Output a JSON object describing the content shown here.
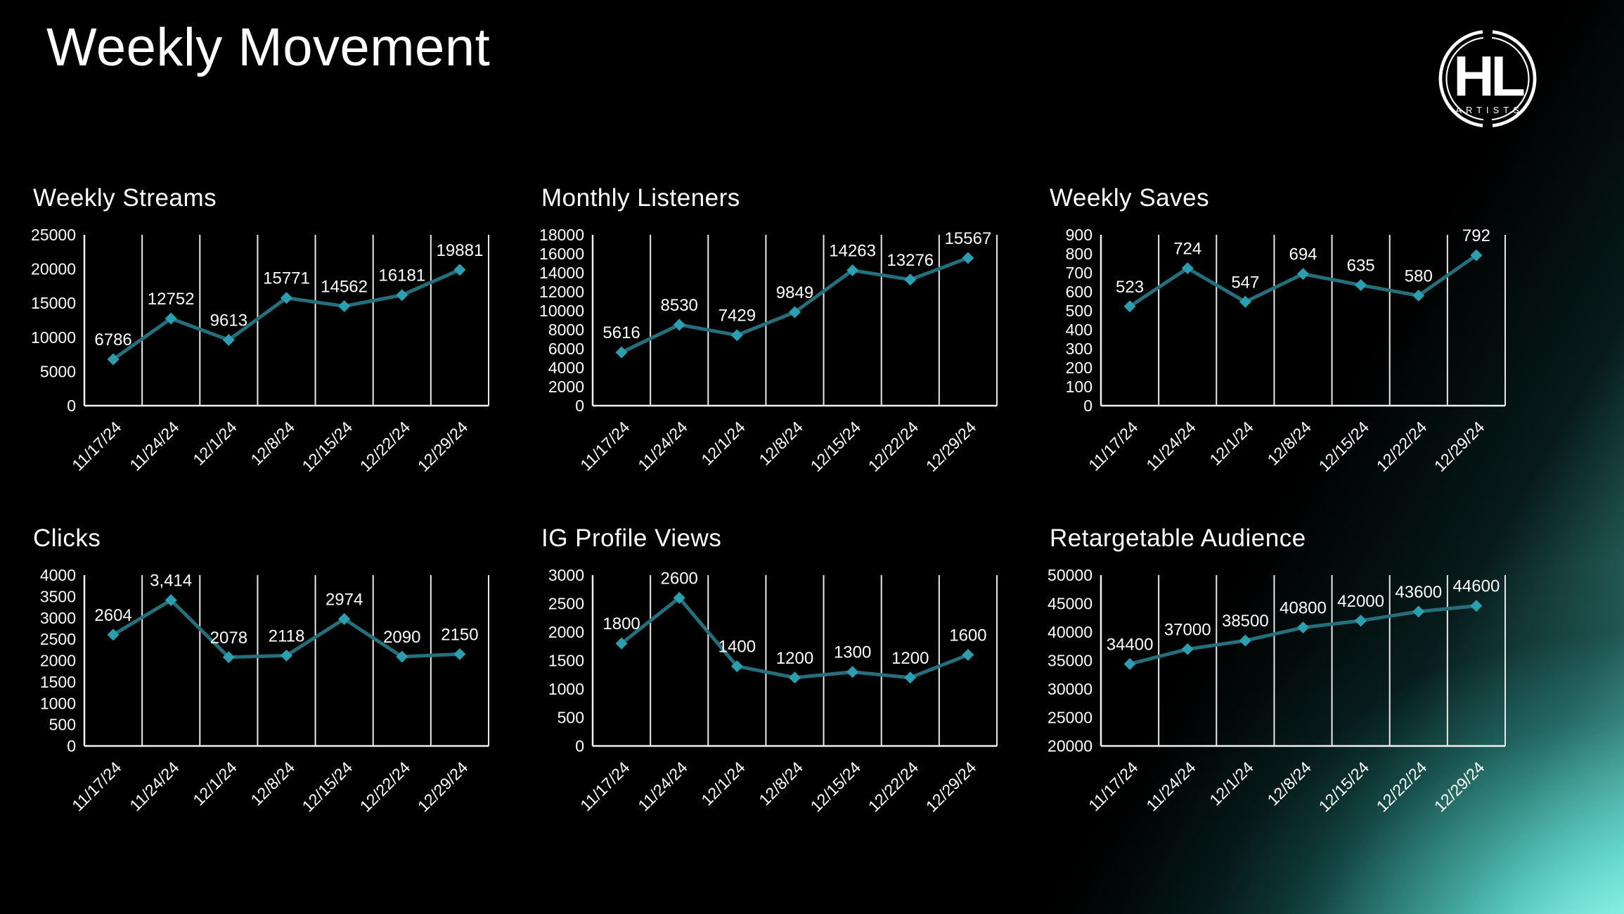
{
  "page": {
    "title": "Weekly Movement"
  },
  "logo": {
    "monogram": "HL",
    "subtext": "ARTISTS"
  },
  "colors": {
    "line": "#256e7b",
    "marker": "#2b9fb0",
    "glow": "#8dfbea",
    "text": "#ffffff"
  },
  "chart_data": [
    {
      "type": "line",
      "title": "Weekly Streams",
      "categories": [
        "11/17/24",
        "11/24/24",
        "12/1/24",
        "12/8/24",
        "12/15/24",
        "12/22/24",
        "12/29/24"
      ],
      "values": [
        6786,
        12752,
        9613,
        15771,
        14562,
        16181,
        19881
      ],
      "labels": [
        "6786",
        "12752",
        "9613",
        "15771",
        "14562",
        "16181",
        "19881"
      ],
      "ylim": [
        0,
        25000
      ],
      "ystep": 5000,
      "grid": "vertical",
      "legend": "none"
    },
    {
      "type": "line",
      "title": "Monthly Listeners",
      "categories": [
        "11/17/24",
        "11/24/24",
        "12/1/24",
        "12/8/24",
        "12/15/24",
        "12/22/24",
        "12/29/24"
      ],
      "values": [
        5616,
        8530,
        7429,
        9849,
        14263,
        13276,
        15567
      ],
      "labels": [
        "5616",
        "8530",
        "7429",
        "9849",
        "14263",
        "13276",
        "15567"
      ],
      "ylim": [
        0,
        18000
      ],
      "ystep": 2000,
      "grid": "vertical",
      "legend": "none"
    },
    {
      "type": "line",
      "title": "Weekly Saves",
      "categories": [
        "11/17/24",
        "11/24/24",
        "12/1/24",
        "12/8/24",
        "12/15/24",
        "12/22/24",
        "12/29/24"
      ],
      "values": [
        523,
        724,
        547,
        694,
        635,
        580,
        792
      ],
      "labels": [
        "523",
        "724",
        "547",
        "694",
        "635",
        "580",
        "792"
      ],
      "ylim": [
        0,
        900
      ],
      "ystep": 100,
      "grid": "vertical",
      "legend": "none"
    },
    {
      "type": "line",
      "title": "Clicks",
      "categories": [
        "11/17/24",
        "11/24/24",
        "12/1/24",
        "12/8/24",
        "12/15/24",
        "12/22/24",
        "12/29/24"
      ],
      "values": [
        2604,
        3414,
        2078,
        2118,
        2974,
        2090,
        2150
      ],
      "labels": [
        "2604",
        "3,414",
        "2078",
        "2118",
        "2974",
        "2090",
        "2150"
      ],
      "ylim": [
        0,
        4000
      ],
      "ystep": 500,
      "grid": "vertical",
      "legend": "none"
    },
    {
      "type": "line",
      "title": "IG Profile Views",
      "categories": [
        "11/17/24",
        "11/24/24",
        "12/1/24",
        "12/8/24",
        "12/15/24",
        "12/22/24",
        "12/29/24"
      ],
      "values": [
        1800,
        2600,
        1400,
        1200,
        1300,
        1200,
        1600
      ],
      "labels": [
        "1800",
        "2600",
        "1400",
        "1200",
        "1300",
        "1200",
        "1600"
      ],
      "ylim": [
        0,
        3000
      ],
      "ystep": 500,
      "grid": "vertical",
      "legend": "none"
    },
    {
      "type": "line",
      "title": "Retargetable Audience",
      "categories": [
        "11/17/24",
        "11/24/24",
        "12/1/24",
        "12/8/24",
        "12/15/24",
        "12/22/24",
        "12/29/24"
      ],
      "values": [
        34400,
        37000,
        38500,
        40800,
        42000,
        43600,
        44600
      ],
      "labels": [
        "34400",
        "37000",
        "38500",
        "40800",
        "42000",
        "43600",
        "44600"
      ],
      "ylim": [
        20000,
        50000
      ],
      "ystep": 5000,
      "grid": "vertical",
      "legend": "none"
    }
  ]
}
